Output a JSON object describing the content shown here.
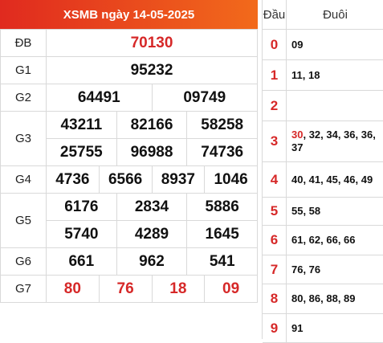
{
  "header": {
    "title": "XSMB ngày 14-05-2025"
  },
  "results": {
    "db": {
      "label": "ĐB",
      "value": "70130"
    },
    "g1": {
      "label": "G1",
      "values": [
        "95232"
      ]
    },
    "g2": {
      "label": "G2",
      "values": [
        "64491",
        "09749"
      ]
    },
    "g3": {
      "label": "G3",
      "values": [
        "43211",
        "82166",
        "58258",
        "25755",
        "96988",
        "74736"
      ]
    },
    "g4": {
      "label": "G4",
      "values": [
        "4736",
        "6566",
        "8937",
        "1046"
      ]
    },
    "g5": {
      "label": "G5",
      "values": [
        "6176",
        "2834",
        "5886",
        "5740",
        "4289",
        "1645"
      ]
    },
    "g6": {
      "label": "G6",
      "values": [
        "661",
        "962",
        "541"
      ]
    },
    "g7": {
      "label": "G7",
      "values": [
        "80",
        "76",
        "18",
        "09"
      ]
    }
  },
  "tail_table": {
    "head_label": "Đầu",
    "tail_label": "Đuôi",
    "rows": [
      {
        "head": "0",
        "tail": "09"
      },
      {
        "head": "1",
        "tail": "11, 18"
      },
      {
        "head": "2",
        "tail": ""
      },
      {
        "head": "3",
        "tail_red": "30",
        "tail": ", 32, 34, 36, 36, 37"
      },
      {
        "head": "4",
        "tail": "40, 41, 45, 46, 49"
      },
      {
        "head": "5",
        "tail": "55, 58"
      },
      {
        "head": "6",
        "tail": "61, 62, 66, 66"
      },
      {
        "head": "7",
        "tail": "76, 76"
      },
      {
        "head": "8",
        "tail": "80, 86, 88, 89"
      },
      {
        "head": "9",
        "tail": "91"
      }
    ]
  },
  "colors": {
    "accent_red": "#d62828",
    "header_start": "#e02a1f",
    "header_end": "#f26a1b"
  }
}
